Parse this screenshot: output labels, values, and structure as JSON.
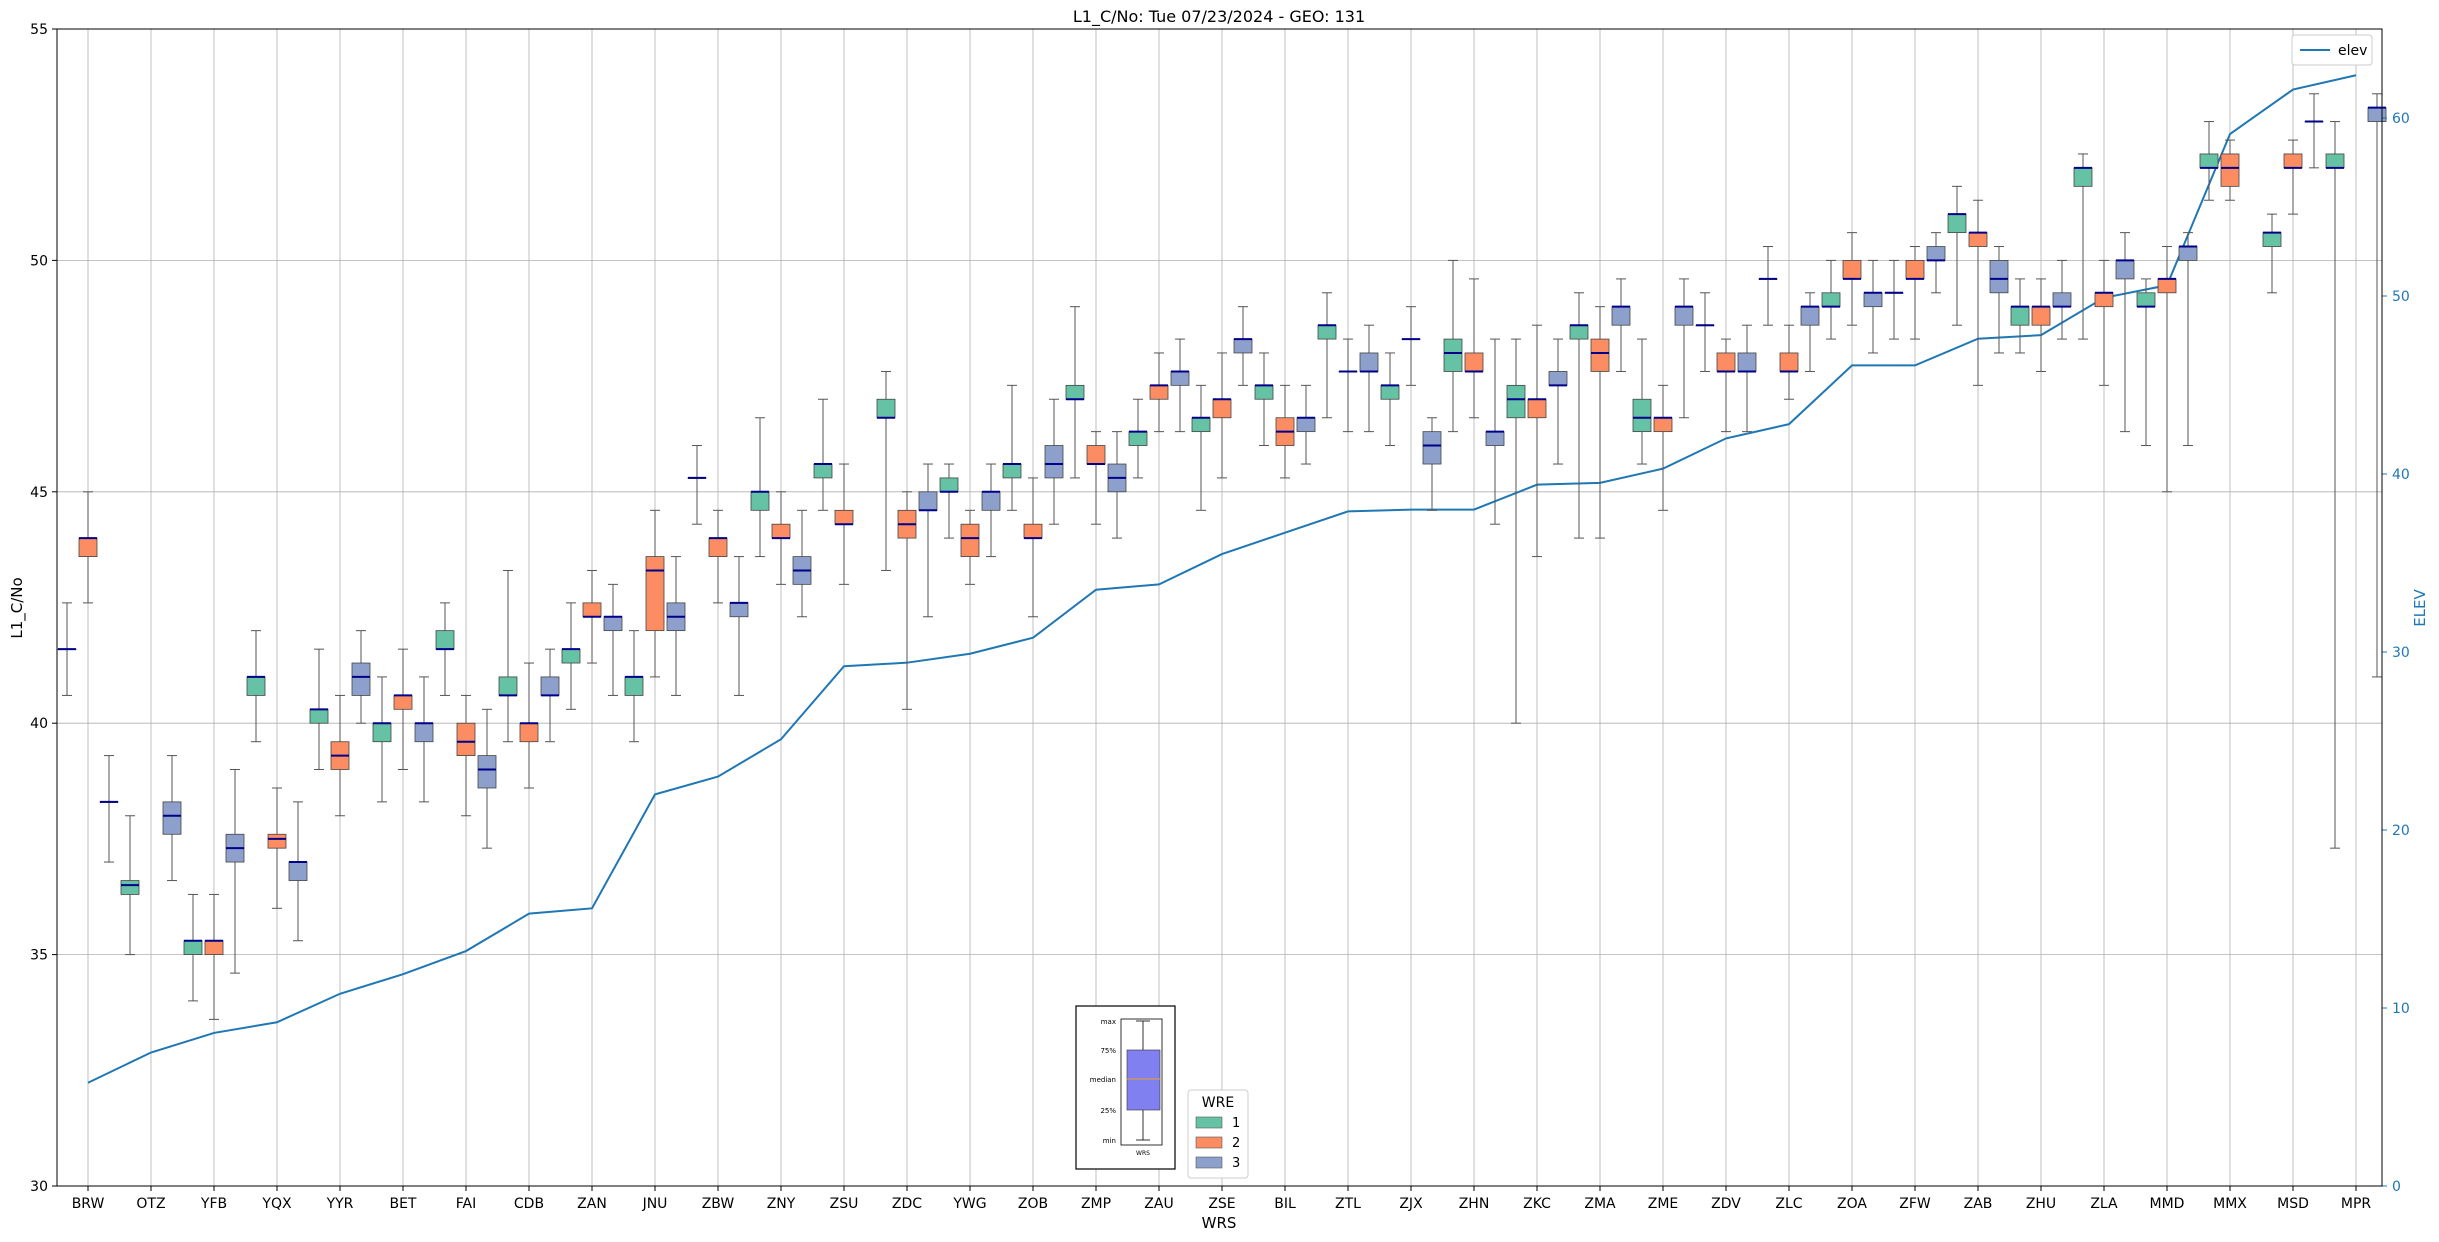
{
  "chart_data": {
    "type": "box",
    "title": "L1_C/No: Tue 07/23/2024 - GEO: 131",
    "xlabel": "WRS",
    "ylabel": "L1_C/No",
    "y2label": "ELEV",
    "ylim": [
      30,
      55
    ],
    "y2lim": [
      0,
      65
    ],
    "yticks": [
      30,
      35,
      40,
      45,
      50,
      55
    ],
    "y2ticks": [
      0,
      10,
      20,
      30,
      40,
      50,
      60
    ],
    "grid": true,
    "categories": [
      "BRW",
      "OTZ",
      "YFB",
      "YQX",
      "YYR",
      "BET",
      "FAI",
      "CDB",
      "ZAN",
      "JNU",
      "ZBW",
      "ZNY",
      "ZSU",
      "ZDC",
      "YWG",
      "ZOB",
      "ZMP",
      "ZAU",
      "ZSE",
      "BIL",
      "ZTL",
      "ZJX",
      "ZHN",
      "ZKC",
      "ZMA",
      "ZME",
      "ZDV",
      "ZLC",
      "ZOA",
      "ZFW",
      "ZAB",
      "ZHU",
      "ZLA",
      "MMD",
      "MMX",
      "MSD",
      "MPR"
    ],
    "wre_colors": {
      "1": "#66c2a5",
      "2": "#fc8d62",
      "3": "#8da0cb"
    },
    "median_color": "#00008b",
    "elev_color": "#1f77b4",
    "boxes": [
      {
        "cat": "BRW",
        "wre": 1,
        "min": 40.6,
        "q1": 41.6,
        "med": 41.6,
        "q3": 41.6,
        "max": 42.6
      },
      {
        "cat": "BRW",
        "wre": 2,
        "min": 42.6,
        "q1": 43.6,
        "med": 44.0,
        "q3": 44.0,
        "max": 45.0
      },
      {
        "cat": "BRW",
        "wre": 3,
        "min": 37.0,
        "q1": 38.3,
        "med": 38.3,
        "q3": 38.3,
        "max": 39.3
      },
      {
        "cat": "OTZ",
        "wre": 1,
        "min": 35.0,
        "q1": 36.3,
        "med": 36.5,
        "q3": 36.6,
        "max": 38.0
      },
      {
        "cat": "OTZ",
        "wre": 3,
        "min": 36.6,
        "q1": 37.6,
        "med": 38.0,
        "q3": 38.3,
        "max": 39.3
      },
      {
        "cat": "YFB",
        "wre": 1,
        "min": 34.0,
        "q1": 35.0,
        "med": 35.3,
        "q3": 35.3,
        "max": 36.3
      },
      {
        "cat": "YFB",
        "wre": 2,
        "min": 33.6,
        "q1": 35.0,
        "med": 35.3,
        "q3": 35.3,
        "max": 36.3
      },
      {
        "cat": "YFB",
        "wre": 3,
        "min": 34.6,
        "q1": 37.0,
        "med": 37.3,
        "q3": 37.6,
        "max": 39.0
      },
      {
        "cat": "YQX",
        "wre": 1,
        "min": 39.6,
        "q1": 40.6,
        "med": 41.0,
        "q3": 41.0,
        "max": 42.0
      },
      {
        "cat": "YQX",
        "wre": 2,
        "min": 36.0,
        "q1": 37.3,
        "med": 37.5,
        "q3": 37.6,
        "max": 38.6
      },
      {
        "cat": "YQX",
        "wre": 3,
        "min": 35.3,
        "q1": 36.6,
        "med": 37.0,
        "q3": 37.0,
        "max": 38.3
      },
      {
        "cat": "YYR",
        "wre": 1,
        "min": 39.0,
        "q1": 40.0,
        "med": 40.3,
        "q3": 40.3,
        "max": 41.6
      },
      {
        "cat": "YYR",
        "wre": 2,
        "min": 38.0,
        "q1": 39.0,
        "med": 39.3,
        "q3": 39.6,
        "max": 40.6
      },
      {
        "cat": "YYR",
        "wre": 3,
        "min": 40.0,
        "q1": 40.6,
        "med": 41.0,
        "q3": 41.3,
        "max": 42.0
      },
      {
        "cat": "BET",
        "wre": 1,
        "min": 38.3,
        "q1": 39.6,
        "med": 40.0,
        "q3": 40.0,
        "max": 41.0
      },
      {
        "cat": "BET",
        "wre": 2,
        "min": 39.0,
        "q1": 40.3,
        "med": 40.6,
        "q3": 40.6,
        "max": 41.6
      },
      {
        "cat": "BET",
        "wre": 3,
        "min": 38.3,
        "q1": 39.6,
        "med": 40.0,
        "q3": 40.0,
        "max": 41.0
      },
      {
        "cat": "FAI",
        "wre": 1,
        "min": 40.6,
        "q1": 41.6,
        "med": 41.6,
        "q3": 42.0,
        "max": 42.6
      },
      {
        "cat": "FAI",
        "wre": 2,
        "min": 38.0,
        "q1": 39.3,
        "med": 39.6,
        "q3": 40.0,
        "max": 40.6
      },
      {
        "cat": "FAI",
        "wre": 3,
        "min": 37.3,
        "q1": 38.6,
        "med": 39.0,
        "q3": 39.3,
        "max": 40.3
      },
      {
        "cat": "CDB",
        "wre": 1,
        "min": 39.6,
        "q1": 40.6,
        "med": 40.6,
        "q3": 41.0,
        "max": 43.3
      },
      {
        "cat": "CDB",
        "wre": 2,
        "min": 38.6,
        "q1": 39.6,
        "med": 40.0,
        "q3": 40.0,
        "max": 41.3
      },
      {
        "cat": "CDB",
        "wre": 3,
        "min": 39.6,
        "q1": 40.6,
        "med": 40.6,
        "q3": 41.0,
        "max": 41.6
      },
      {
        "cat": "ZAN",
        "wre": 1,
        "min": 40.3,
        "q1": 41.3,
        "med": 41.6,
        "q3": 41.6,
        "max": 42.6
      },
      {
        "cat": "ZAN",
        "wre": 2,
        "min": 41.3,
        "q1": 42.3,
        "med": 42.3,
        "q3": 42.6,
        "max": 43.3
      },
      {
        "cat": "ZAN",
        "wre": 3,
        "min": 40.6,
        "q1": 42.0,
        "med": 42.3,
        "q3": 42.3,
        "max": 43.0
      },
      {
        "cat": "JNU",
        "wre": 1,
        "min": 39.6,
        "q1": 40.6,
        "med": 41.0,
        "q3": 41.0,
        "max": 42.0
      },
      {
        "cat": "JNU",
        "wre": 2,
        "min": 41.0,
        "q1": 42.0,
        "med": 43.3,
        "q3": 43.6,
        "max": 44.6
      },
      {
        "cat": "JNU",
        "wre": 3,
        "min": 40.6,
        "q1": 42.0,
        "med": 42.3,
        "q3": 42.6,
        "max": 43.6
      },
      {
        "cat": "ZBW",
        "wre": 1,
        "min": 44.3,
        "q1": 45.3,
        "med": 45.3,
        "q3": 45.3,
        "max": 46.0
      },
      {
        "cat": "ZBW",
        "wre": 2,
        "min": 42.6,
        "q1": 43.6,
        "med": 44.0,
        "q3": 44.0,
        "max": 44.6
      },
      {
        "cat": "ZBW",
        "wre": 3,
        "min": 40.6,
        "q1": 42.3,
        "med": 42.6,
        "q3": 42.6,
        "max": 43.6
      },
      {
        "cat": "ZNY",
        "wre": 1,
        "min": 43.6,
        "q1": 44.6,
        "med": 45.0,
        "q3": 45.0,
        "max": 46.6
      },
      {
        "cat": "ZNY",
        "wre": 2,
        "min": 43.0,
        "q1": 44.0,
        "med": 44.0,
        "q3": 44.3,
        "max": 45.0
      },
      {
        "cat": "ZNY",
        "wre": 3,
        "min": 42.3,
        "q1": 43.0,
        "med": 43.3,
        "q3": 43.6,
        "max": 44.6
      },
      {
        "cat": "ZSU",
        "wre": 1,
        "min": 44.6,
        "q1": 45.3,
        "med": 45.6,
        "q3": 45.6,
        "max": 47.0
      },
      {
        "cat": "ZSU",
        "wre": 2,
        "min": 43.0,
        "q1": 44.3,
        "med": 44.3,
        "q3": 44.6,
        "max": 45.6
      },
      {
        "cat": "ZDC",
        "wre": 1,
        "min": 43.3,
        "q1": 46.6,
        "med": 46.6,
        "q3": 47.0,
        "max": 47.6
      },
      {
        "cat": "ZDC",
        "wre": 2,
        "min": 40.3,
        "q1": 44.0,
        "med": 44.3,
        "q3": 44.6,
        "max": 45.0
      },
      {
        "cat": "ZDC",
        "wre": 3,
        "min": 42.3,
        "q1": 44.6,
        "med": 44.6,
        "q3": 45.0,
        "max": 45.6
      },
      {
        "cat": "YWG",
        "wre": 1,
        "min": 44.0,
        "q1": 45.0,
        "med": 45.0,
        "q3": 45.3,
        "max": 45.6
      },
      {
        "cat": "YWG",
        "wre": 2,
        "min": 43.0,
        "q1": 43.6,
        "med": 44.0,
        "q3": 44.3,
        "max": 44.6
      },
      {
        "cat": "YWG",
        "wre": 3,
        "min": 43.6,
        "q1": 44.6,
        "med": 45.0,
        "q3": 45.0,
        "max": 45.6
      },
      {
        "cat": "ZOB",
        "wre": 1,
        "min": 44.6,
        "q1": 45.3,
        "med": 45.6,
        "q3": 45.6,
        "max": 47.3
      },
      {
        "cat": "ZOB",
        "wre": 2,
        "min": 42.3,
        "q1": 44.0,
        "med": 44.0,
        "q3": 44.3,
        "max": 45.3
      },
      {
        "cat": "ZOB",
        "wre": 3,
        "min": 44.3,
        "q1": 45.3,
        "med": 45.6,
        "q3": 46.0,
        "max": 47.0
      },
      {
        "cat": "ZMP",
        "wre": 1,
        "min": 45.3,
        "q1": 47.0,
        "med": 47.0,
        "q3": 47.3,
        "max": 49.0
      },
      {
        "cat": "ZMP",
        "wre": 2,
        "min": 44.3,
        "q1": 45.6,
        "med": 45.6,
        "q3": 46.0,
        "max": 46.3
      },
      {
        "cat": "ZMP",
        "wre": 3,
        "min": 44.0,
        "q1": 45.0,
        "med": 45.3,
        "q3": 45.6,
        "max": 46.3
      },
      {
        "cat": "ZAU",
        "wre": 1,
        "min": 45.3,
        "q1": 46.0,
        "med": 46.3,
        "q3": 46.3,
        "max": 47.0
      },
      {
        "cat": "ZAU",
        "wre": 2,
        "min": 46.3,
        "q1": 47.0,
        "med": 47.3,
        "q3": 47.3,
        "max": 48.0
      },
      {
        "cat": "ZAU",
        "wre": 3,
        "min": 46.3,
        "q1": 47.3,
        "med": 47.6,
        "q3": 47.6,
        "max": 48.3
      },
      {
        "cat": "ZSE",
        "wre": 1,
        "min": 44.6,
        "q1": 46.3,
        "med": 46.6,
        "q3": 46.6,
        "max": 47.3
      },
      {
        "cat": "ZSE",
        "wre": 2,
        "min": 45.3,
        "q1": 46.6,
        "med": 47.0,
        "q3": 47.0,
        "max": 48.0
      },
      {
        "cat": "ZSE",
        "wre": 3,
        "min": 47.3,
        "q1": 48.0,
        "med": 48.3,
        "q3": 48.3,
        "max": 49.0
      },
      {
        "cat": "BIL",
        "wre": 1,
        "min": 46.0,
        "q1": 47.0,
        "med": 47.3,
        "q3": 47.3,
        "max": 48.0
      },
      {
        "cat": "BIL",
        "wre": 2,
        "min": 45.3,
        "q1": 46.0,
        "med": 46.3,
        "q3": 46.6,
        "max": 47.3
      },
      {
        "cat": "BIL",
        "wre": 3,
        "min": 45.6,
        "q1": 46.3,
        "med": 46.6,
        "q3": 46.6,
        "max": 47.3
      },
      {
        "cat": "ZTL",
        "wre": 1,
        "min": 46.6,
        "q1": 48.3,
        "med": 48.6,
        "q3": 48.6,
        "max": 49.3
      },
      {
        "cat": "ZTL",
        "wre": 2,
        "min": 46.3,
        "q1": 47.6,
        "med": 47.6,
        "q3": 47.6,
        "max": 48.3
      },
      {
        "cat": "ZTL",
        "wre": 3,
        "min": 46.3,
        "q1": 47.6,
        "med": 47.6,
        "q3": 48.0,
        "max": 48.6
      },
      {
        "cat": "ZJX",
        "wre": 1,
        "min": 46.0,
        "q1": 47.0,
        "med": 47.3,
        "q3": 47.3,
        "max": 48.0
      },
      {
        "cat": "ZJX",
        "wre": 2,
        "min": 47.3,
        "q1": 48.3,
        "med": 48.3,
        "q3": 48.3,
        "max": 49.0
      },
      {
        "cat": "ZJX",
        "wre": 3,
        "min": 44.6,
        "q1": 45.6,
        "med": 46.0,
        "q3": 46.3,
        "max": 46.6
      },
      {
        "cat": "ZHN",
        "wre": 1,
        "min": 46.3,
        "q1": 47.6,
        "med": 48.0,
        "q3": 48.3,
        "max": 50.0
      },
      {
        "cat": "ZHN",
        "wre": 2,
        "min": 46.6,
        "q1": 47.6,
        "med": 47.6,
        "q3": 48.0,
        "max": 49.6
      },
      {
        "cat": "ZHN",
        "wre": 3,
        "min": 44.3,
        "q1": 46.0,
        "med": 46.3,
        "q3": 46.3,
        "max": 48.3
      },
      {
        "cat": "ZKC",
        "wre": 1,
        "min": 40.0,
        "q1": 46.6,
        "med": 47.0,
        "q3": 47.3,
        "max": 48.3
      },
      {
        "cat": "ZKC",
        "wre": 2,
        "min": 43.6,
        "q1": 46.6,
        "med": 47.0,
        "q3": 47.0,
        "max": 48.6
      },
      {
        "cat": "ZKC",
        "wre": 3,
        "min": 45.6,
        "q1": 47.3,
        "med": 47.3,
        "q3": 47.6,
        "max": 48.3
      },
      {
        "cat": "ZMA",
        "wre": 1,
        "min": 44.0,
        "q1": 48.3,
        "med": 48.6,
        "q3": 48.6,
        "max": 49.3
      },
      {
        "cat": "ZMA",
        "wre": 2,
        "min": 44.0,
        "q1": 47.6,
        "med": 48.0,
        "q3": 48.3,
        "max": 49.0
      },
      {
        "cat": "ZMA",
        "wre": 3,
        "min": 47.6,
        "q1": 48.6,
        "med": 49.0,
        "q3": 49.0,
        "max": 49.6
      },
      {
        "cat": "ZME",
        "wre": 1,
        "min": 45.6,
        "q1": 46.3,
        "med": 46.6,
        "q3": 47.0,
        "max": 48.3
      },
      {
        "cat": "ZME",
        "wre": 2,
        "min": 44.6,
        "q1": 46.3,
        "med": 46.6,
        "q3": 46.6,
        "max": 47.3
      },
      {
        "cat": "ZME",
        "wre": 3,
        "min": 46.6,
        "q1": 48.6,
        "med": 49.0,
        "q3": 49.0,
        "max": 49.6
      },
      {
        "cat": "ZDV",
        "wre": 1,
        "min": 47.6,
        "q1": 48.6,
        "med": 48.6,
        "q3": 48.6,
        "max": 49.3
      },
      {
        "cat": "ZDV",
        "wre": 2,
        "min": 46.3,
        "q1": 47.6,
        "med": 47.6,
        "q3": 48.0,
        "max": 48.3
      },
      {
        "cat": "ZDV",
        "wre": 3,
        "min": 46.3,
        "q1": 47.6,
        "med": 47.6,
        "q3": 48.0,
        "max": 48.6
      },
      {
        "cat": "ZLC",
        "wre": 1,
        "min": 48.6,
        "q1": 49.6,
        "med": 49.6,
        "q3": 49.6,
        "max": 50.3
      },
      {
        "cat": "ZLC",
        "wre": 2,
        "min": 47.0,
        "q1": 47.6,
        "med": 47.6,
        "q3": 48.0,
        "max": 48.6
      },
      {
        "cat": "ZLC",
        "wre": 3,
        "min": 47.6,
        "q1": 48.6,
        "med": 49.0,
        "q3": 49.0,
        "max": 49.3
      },
      {
        "cat": "ZOA",
        "wre": 1,
        "min": 48.3,
        "q1": 49.0,
        "med": 49.0,
        "q3": 49.3,
        "max": 50.0
      },
      {
        "cat": "ZOA",
        "wre": 2,
        "min": 48.6,
        "q1": 49.6,
        "med": 49.6,
        "q3": 50.0,
        "max": 50.6
      },
      {
        "cat": "ZOA",
        "wre": 3,
        "min": 48.0,
        "q1": 49.0,
        "med": 49.3,
        "q3": 49.3,
        "max": 50.0
      },
      {
        "cat": "ZFW",
        "wre": 1,
        "min": 48.3,
        "q1": 49.3,
        "med": 49.3,
        "q3": 49.3,
        "max": 50.0
      },
      {
        "cat": "ZFW",
        "wre": 2,
        "min": 48.3,
        "q1": 49.6,
        "med": 49.6,
        "q3": 50.0,
        "max": 50.3
      },
      {
        "cat": "ZFW",
        "wre": 3,
        "min": 49.3,
        "q1": 50.0,
        "med": 50.0,
        "q3": 50.3,
        "max": 50.6
      },
      {
        "cat": "ZAB",
        "wre": 1,
        "min": 48.6,
        "q1": 50.6,
        "med": 51.0,
        "q3": 51.0,
        "max": 51.6
      },
      {
        "cat": "ZAB",
        "wre": 2,
        "min": 47.3,
        "q1": 50.3,
        "med": 50.6,
        "q3": 50.6,
        "max": 51.3
      },
      {
        "cat": "ZAB",
        "wre": 3,
        "min": 48.0,
        "q1": 49.3,
        "med": 49.6,
        "q3": 50.0,
        "max": 50.3
      },
      {
        "cat": "ZHU",
        "wre": 1,
        "min": 48.0,
        "q1": 48.6,
        "med": 49.0,
        "q3": 49.0,
        "max": 49.6
      },
      {
        "cat": "ZHU",
        "wre": 2,
        "min": 47.6,
        "q1": 48.6,
        "med": 49.0,
        "q3": 49.0,
        "max": 49.6
      },
      {
        "cat": "ZHU",
        "wre": 3,
        "min": 48.3,
        "q1": 49.0,
        "med": 49.0,
        "q3": 49.3,
        "max": 50.0
      },
      {
        "cat": "ZLA",
        "wre": 1,
        "min": 48.3,
        "q1": 51.6,
        "med": 52.0,
        "q3": 52.0,
        "max": 52.3
      },
      {
        "cat": "ZLA",
        "wre": 2,
        "min": 47.3,
        "q1": 49.0,
        "med": 49.3,
        "q3": 49.3,
        "max": 50.0
      },
      {
        "cat": "ZLA",
        "wre": 3,
        "min": 46.3,
        "q1": 49.6,
        "med": 50.0,
        "q3": 50.0,
        "max": 50.6
      },
      {
        "cat": "MMD",
        "wre": 1,
        "min": 46.0,
        "q1": 49.0,
        "med": 49.0,
        "q3": 49.3,
        "max": 49.6
      },
      {
        "cat": "MMD",
        "wre": 2,
        "min": 45.0,
        "q1": 49.3,
        "med": 49.6,
        "q3": 49.6,
        "max": 50.3
      },
      {
        "cat": "MMD",
        "wre": 3,
        "min": 46.0,
        "q1": 50.0,
        "med": 50.3,
        "q3": 50.3,
        "max": 50.6
      },
      {
        "cat": "MMX",
        "wre": 1,
        "min": 51.3,
        "q1": 52.0,
        "med": 52.0,
        "q3": 52.3,
        "max": 53.0
      },
      {
        "cat": "MMX",
        "wre": 2,
        "min": 51.3,
        "q1": 51.6,
        "med": 52.0,
        "q3": 52.3,
        "max": 52.6
      },
      {
        "cat": "MSD",
        "wre": 1,
        "min": 49.3,
        "q1": 50.3,
        "med": 50.6,
        "q3": 50.6,
        "max": 51.0
      },
      {
        "cat": "MSD",
        "wre": 2,
        "min": 51.0,
        "q1": 52.0,
        "med": 52.0,
        "q3": 52.3,
        "max": 52.6
      },
      {
        "cat": "MSD",
        "wre": 3,
        "min": 52.0,
        "q1": 53.0,
        "med": 53.0,
        "q3": 53.0,
        "max": 53.6
      },
      {
        "cat": "MPR",
        "wre": 1,
        "min": 37.3,
        "q1": 52.0,
        "med": 52.0,
        "q3": 52.3,
        "max": 53.0
      },
      {
        "cat": "MPR",
        "wre": 3,
        "min": 41.0,
        "q1": 53.0,
        "med": 53.3,
        "q3": 53.3,
        "max": 53.6
      }
    ],
    "elev_series": {
      "name": "elev",
      "values": [
        5.8,
        7.5,
        8.6,
        9.2,
        10.8,
        11.9,
        13.2,
        15.3,
        15.6,
        22.0,
        23.0,
        25.1,
        29.2,
        29.4,
        29.9,
        30.8,
        33.5,
        33.8,
        35.5,
        36.7,
        37.9,
        38.0,
        38.0,
        39.4,
        39.5,
        40.3,
        42.0,
        42.8,
        46.1,
        46.1,
        47.6,
        47.8,
        49.9,
        50.6,
        59.1,
        61.6,
        62.4
      ]
    },
    "legend_elev": {
      "position": "top-right",
      "label": "elev"
    },
    "legend_wre": {
      "position": "bottom-center",
      "title": "WRE",
      "entries": [
        "1",
        "2",
        "3"
      ]
    },
    "inset_labels": [
      "max",
      "75%",
      "median",
      "25%",
      "min"
    ],
    "inset_caption": "WRS"
  }
}
